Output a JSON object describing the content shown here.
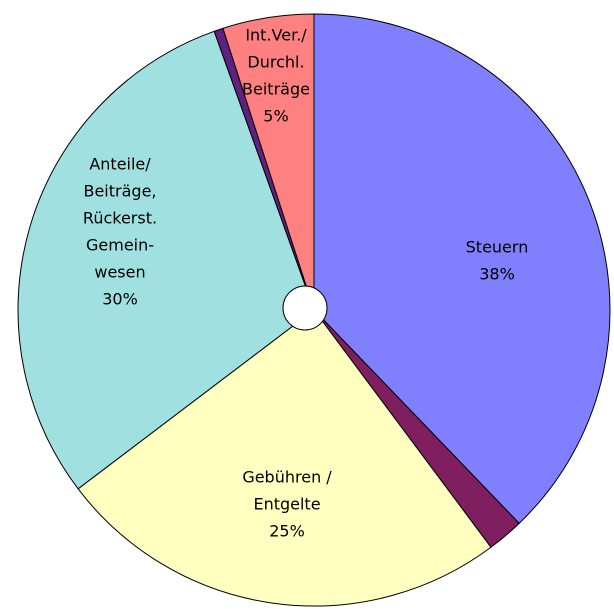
{
  "chart_data": {
    "type": "pie",
    "categories": [
      [
        "Steuern"
      ],
      null,
      [
        "Gebühren /",
        "Entgelte"
      ],
      [
        "Anteile/",
        "Beiträge,",
        "Rückerst.",
        "Gemein-",
        "wesen"
      ],
      null,
      [
        "Int.Ver./",
        "Durchl.",
        "Beiträge"
      ]
    ],
    "values": [
      38,
      2,
      25,
      30,
      0.5,
      5
    ],
    "value_labels": [
      "38%",
      null,
      "25%",
      "30%",
      null,
      "5%"
    ],
    "colors": [
      "#8080ff",
      "#7f1f5f",
      "#ffffc0",
      "#a0e0e0",
      "#60207f",
      "#ff8080"
    ]
  }
}
